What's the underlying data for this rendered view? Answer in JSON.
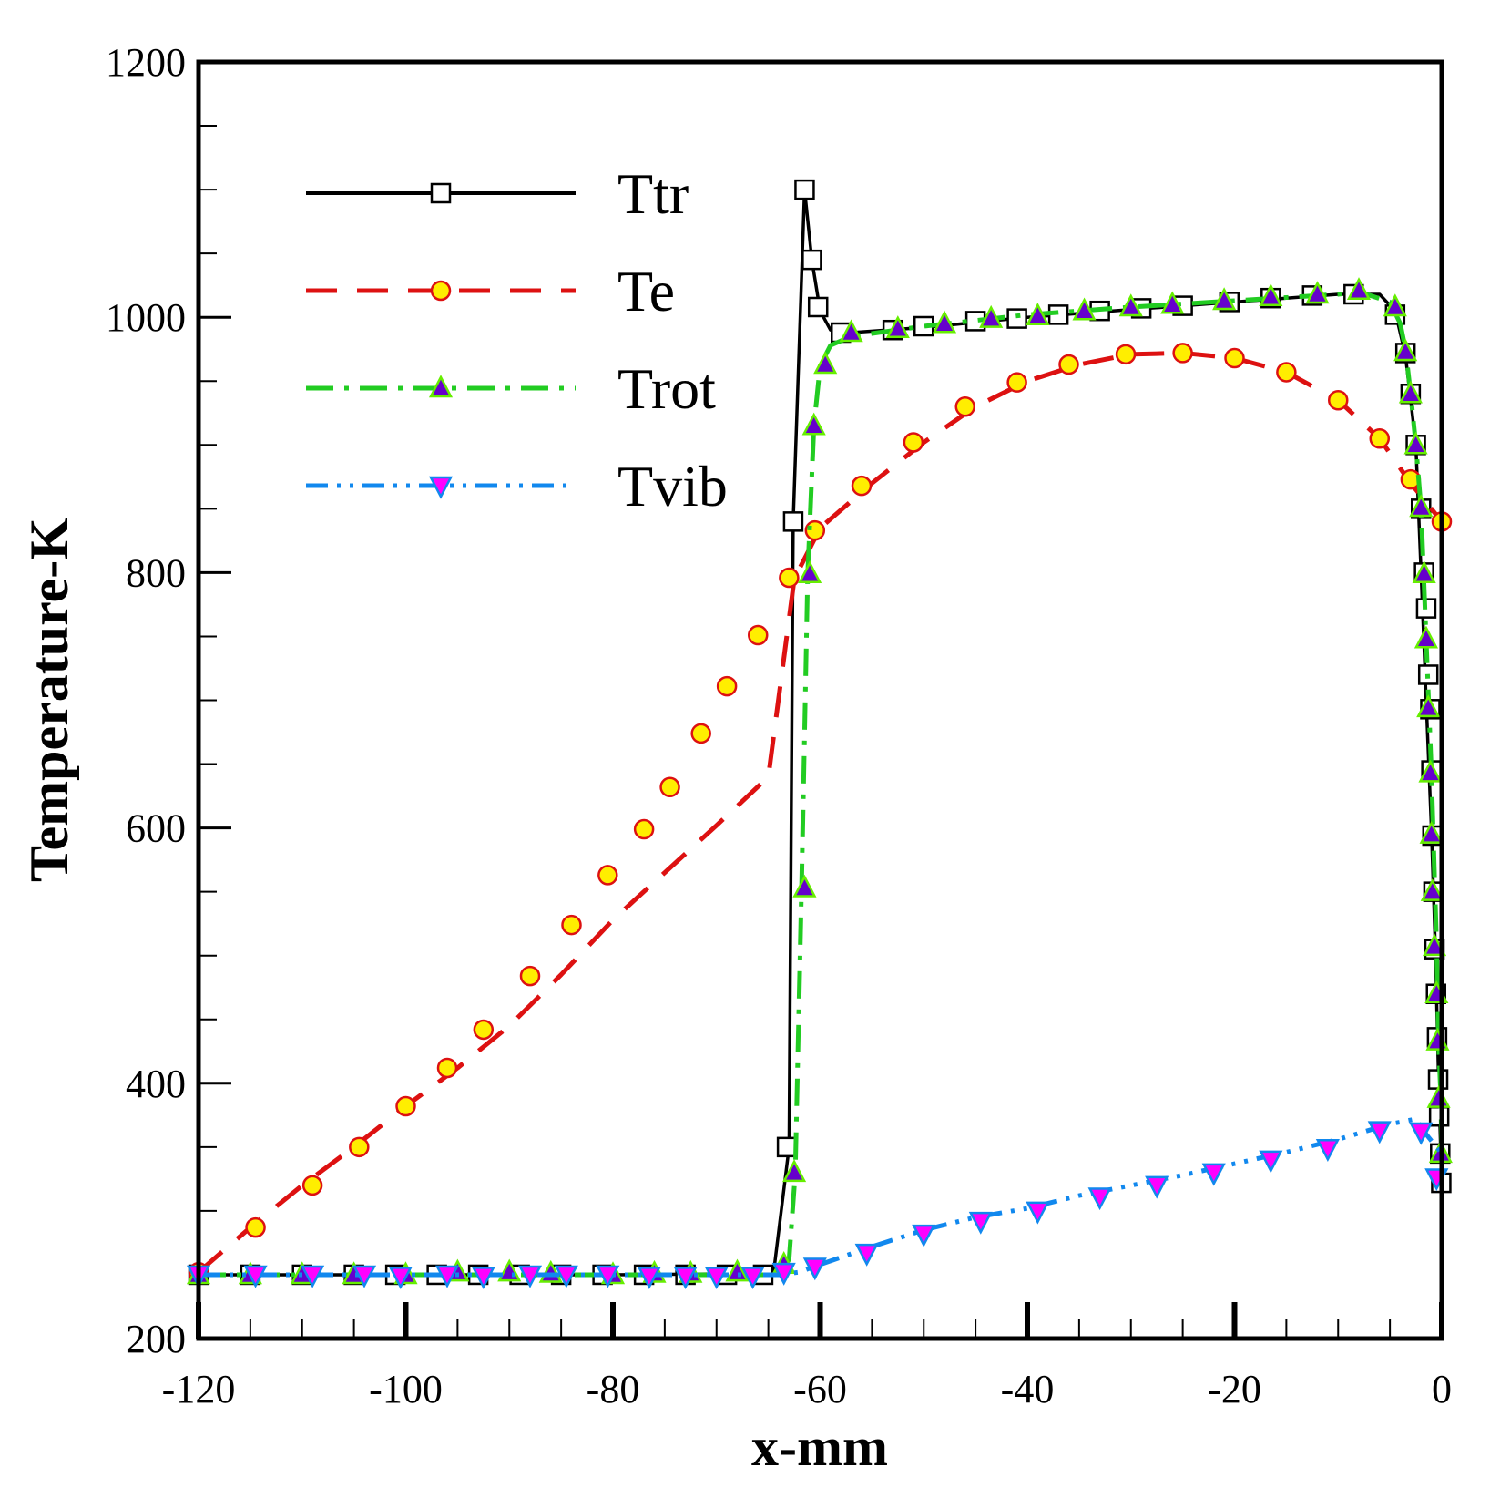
{
  "chart_data": {
    "type": "line",
    "xlabel": "x-mm",
    "ylabel": "Temperature-K",
    "xlim": [
      -120,
      0
    ],
    "ylim": [
      200,
      1200
    ],
    "xticks": [
      -120,
      -100,
      -80,
      -60,
      -40,
      -20,
      0
    ],
    "yticks": [
      200,
      400,
      600,
      800,
      1000,
      1200
    ],
    "xtick_labels": [
      "-120",
      "-100",
      "-80",
      "-60",
      "-40",
      "-20",
      "0"
    ],
    "ytick_labels": [
      "200",
      "400",
      "600",
      "800",
      "1000",
      "1200"
    ],
    "legend_position": "top-left",
    "series": [
      {
        "name": "Ttr",
        "color": "#000000",
        "dash": "solid",
        "marker": "square",
        "marker_fill": "#ffffff",
        "marker_stroke": "#000000",
        "line": [
          [
            -120,
            250
          ],
          [
            -100,
            250
          ],
          [
            -80,
            250
          ],
          [
            -64.5,
            251
          ],
          [
            -63,
            350
          ],
          [
            -62.6,
            840
          ],
          [
            -61.5,
            1100
          ],
          [
            -60.8,
            1045
          ],
          [
            -60,
            1005
          ],
          [
            -59,
            990
          ],
          [
            -57,
            988
          ],
          [
            -50,
            992
          ],
          [
            -40,
            1000
          ],
          [
            -30,
            1006
          ],
          [
            -20,
            1012
          ],
          [
            -10,
            1018
          ],
          [
            -6,
            1018
          ],
          [
            -4.5,
            1005
          ],
          [
            -3.5,
            970
          ],
          [
            -2.5,
            900
          ],
          [
            -2,
            800
          ],
          [
            -1.5,
            700
          ],
          [
            -1,
            600
          ],
          [
            -0.6,
            500
          ],
          [
            -0.3,
            400
          ],
          [
            0,
            320
          ]
        ],
        "markers": [
          [
            -120,
            250
          ],
          [
            -115,
            250
          ],
          [
            -110,
            250
          ],
          [
            -105,
            250
          ],
          [
            -101,
            250
          ],
          [
            -97,
            250
          ],
          [
            -93,
            250
          ],
          [
            -89,
            250
          ],
          [
            -85,
            250
          ],
          [
            -81,
            250
          ],
          [
            -77,
            250
          ],
          [
            -73,
            250
          ],
          [
            -69,
            250
          ],
          [
            -65.5,
            250
          ],
          [
            -63.2,
            350
          ],
          [
            -62.6,
            840
          ],
          [
            -61.5,
            1100
          ],
          [
            -60.8,
            1045
          ],
          [
            -60.2,
            1008
          ],
          [
            -58,
            988
          ],
          [
            -53,
            990
          ],
          [
            -50,
            993
          ],
          [
            -45,
            997
          ],
          [
            -41,
            999
          ],
          [
            -37,
            1002
          ],
          [
            -33,
            1005
          ],
          [
            -29,
            1007
          ],
          [
            -25,
            1009
          ],
          [
            -20.5,
            1012
          ],
          [
            -16.5,
            1015
          ],
          [
            -12.5,
            1017
          ],
          [
            -8.5,
            1018
          ],
          [
            -4.5,
            1002
          ],
          [
            -3.5,
            972
          ],
          [
            -3,
            940
          ],
          [
            -2.5,
            900
          ],
          [
            -2,
            850
          ],
          [
            -1.7,
            800
          ],
          [
            -1.5,
            772
          ],
          [
            -1.3,
            720
          ],
          [
            -1.1,
            693
          ],
          [
            -1,
            645
          ],
          [
            -0.9,
            594
          ],
          [
            -0.8,
            550
          ],
          [
            -0.7,
            505
          ],
          [
            -0.55,
            470
          ],
          [
            -0.45,
            436
          ],
          [
            -0.35,
            403
          ],
          [
            -0.25,
            374
          ],
          [
            -0.15,
            345
          ],
          [
            -0.05,
            322
          ]
        ]
      },
      {
        "name": "Te",
        "color": "#dd1111",
        "dash": "long-dash",
        "marker": "circle",
        "marker_fill": "#ffee00",
        "marker_stroke": "#dd1111",
        "line": [
          [
            -120,
            252
          ],
          [
            -115,
            287
          ],
          [
            -110,
            320
          ],
          [
            -105,
            350
          ],
          [
            -100,
            382
          ],
          [
            -95,
            412
          ],
          [
            -90,
            445
          ],
          [
            -85,
            485
          ],
          [
            -80,
            528
          ],
          [
            -75,
            565
          ],
          [
            -70,
            602
          ],
          [
            -65,
            640
          ],
          [
            -62.5,
            795
          ],
          [
            -60,
            835
          ],
          [
            -55,
            870
          ],
          [
            -50,
            902
          ],
          [
            -45,
            930
          ],
          [
            -40,
            950
          ],
          [
            -35,
            963
          ],
          [
            -30,
            971
          ],
          [
            -25,
            972
          ],
          [
            -20,
            968
          ],
          [
            -15,
            957
          ],
          [
            -10,
            935
          ],
          [
            -6,
            905
          ],
          [
            -3,
            870
          ],
          [
            0,
            840
          ]
        ],
        "markers": [
          [
            -120,
            252
          ],
          [
            -114.5,
            287
          ],
          [
            -109,
            320
          ],
          [
            -104.5,
            350
          ],
          [
            -100,
            382
          ],
          [
            -96,
            412
          ],
          [
            -92.5,
            442
          ],
          [
            -88,
            484
          ],
          [
            -84,
            524
          ],
          [
            -80.5,
            563
          ],
          [
            -77,
            599
          ],
          [
            -74.5,
            632
          ],
          [
            -71.5,
            674
          ],
          [
            -69,
            711
          ],
          [
            -66,
            751
          ],
          [
            -63,
            796
          ],
          [
            -60.5,
            833
          ],
          [
            -56,
            868
          ],
          [
            -51,
            902
          ],
          [
            -46,
            930
          ],
          [
            -41,
            949
          ],
          [
            -36,
            963
          ],
          [
            -30.5,
            971
          ],
          [
            -25,
            972
          ],
          [
            -20,
            968
          ],
          [
            -15,
            957
          ],
          [
            -10,
            935
          ],
          [
            -6,
            905
          ],
          [
            -3,
            873
          ],
          [
            0,
            840
          ]
        ]
      },
      {
        "name": "Trot",
        "color": "#22cc22",
        "dash": "dash-dot",
        "marker": "triangle-up",
        "marker_fill": "#6600cc",
        "marker_stroke": "#66ee00",
        "line": [
          [
            -120,
            250
          ],
          [
            -100,
            250
          ],
          [
            -80,
            250
          ],
          [
            -64,
            250
          ],
          [
            -63,
            262
          ],
          [
            -62.4,
            330
          ],
          [
            -61.8,
            550
          ],
          [
            -61.2,
            800
          ],
          [
            -60.6,
            915
          ],
          [
            -60,
            962
          ],
          [
            -59,
            978
          ],
          [
            -57,
            985
          ],
          [
            -50,
            993
          ],
          [
            -40,
            1002
          ],
          [
            -30,
            1008
          ],
          [
            -20,
            1013
          ],
          [
            -10,
            1018
          ],
          [
            -8,
            1020
          ],
          [
            -5,
            1012
          ],
          [
            -4,
            995
          ],
          [
            -3.5,
            975
          ],
          [
            -3,
            940
          ],
          [
            -2.5,
            900
          ],
          [
            -2,
            850
          ],
          [
            -1.5,
            748
          ],
          [
            -1,
            645
          ],
          [
            -0.5,
            510
          ],
          [
            -0.3,
            430
          ],
          [
            -0.1,
            390
          ],
          [
            0,
            345
          ]
        ],
        "markers": [
          [
            -120,
            250
          ],
          [
            -115,
            250
          ],
          [
            -110,
            250
          ],
          [
            -105,
            250
          ],
          [
            -100,
            250
          ],
          [
            -95,
            252
          ],
          [
            -90,
            252
          ],
          [
            -86,
            251
          ],
          [
            -80,
            250
          ],
          [
            -76,
            251
          ],
          [
            -72.5,
            251
          ],
          [
            -68,
            252
          ],
          [
            -63.5,
            258
          ],
          [
            -62.5,
            330
          ],
          [
            -61.5,
            553
          ],
          [
            -61,
            799
          ],
          [
            -60.6,
            915
          ],
          [
            -59.5,
            963
          ],
          [
            -57,
            988
          ],
          [
            -52.5,
            991
          ],
          [
            -48,
            995
          ],
          [
            -43.5,
            999
          ],
          [
            -39,
            1001
          ],
          [
            -34.5,
            1005
          ],
          [
            -30,
            1008
          ],
          [
            -26,
            1010
          ],
          [
            -21,
            1013
          ],
          [
            -16.5,
            1016
          ],
          [
            -12,
            1018
          ],
          [
            -8,
            1021
          ],
          [
            -4.5,
            1008
          ],
          [
            -3.5,
            973
          ],
          [
            -3,
            940
          ],
          [
            -2.5,
            900
          ],
          [
            -2,
            851
          ],
          [
            -1.7,
            799
          ],
          [
            -1.5,
            748
          ],
          [
            -1.3,
            694
          ],
          [
            -1.1,
            643
          ],
          [
            -1,
            595
          ],
          [
            -0.9,
            550
          ],
          [
            -0.7,
            507
          ],
          [
            -0.5,
            470
          ],
          [
            -0.4,
            433
          ],
          [
            -0.3,
            388
          ],
          [
            -0.1,
            345
          ]
        ]
      },
      {
        "name": "Tvib",
        "color": "#1188ee",
        "dash": "dash-dot-dot",
        "marker": "triangle-down",
        "marker_fill": "#ff00ff",
        "marker_stroke": "#1188ee",
        "line": [
          [
            -120,
            250
          ],
          [
            -100,
            250
          ],
          [
            -80,
            250
          ],
          [
            -64,
            250
          ],
          [
            -62,
            252
          ],
          [
            -60,
            258
          ],
          [
            -55,
            272
          ],
          [
            -50,
            285
          ],
          [
            -45,
            295
          ],
          [
            -40,
            302
          ],
          [
            -35,
            312
          ],
          [
            -30,
            320
          ],
          [
            -25,
            328
          ],
          [
            -20,
            337
          ],
          [
            -15,
            346
          ],
          [
            -10,
            356
          ],
          [
            -5,
            368
          ],
          [
            -2.5,
            372
          ],
          [
            -1.5,
            360
          ],
          [
            0,
            345
          ]
        ],
        "markers": [
          [
            -120,
            250
          ],
          [
            -114.5,
            250
          ],
          [
            -109,
            250
          ],
          [
            -104,
            250
          ],
          [
            -100.5,
            249
          ],
          [
            -96,
            250
          ],
          [
            -92.5,
            249
          ],
          [
            -88,
            250
          ],
          [
            -84.5,
            250
          ],
          [
            -80.5,
            250
          ],
          [
            -76.5,
            249
          ],
          [
            -73,
            249
          ],
          [
            -70,
            249
          ],
          [
            -66.5,
            249
          ],
          [
            -63.5,
            252
          ],
          [
            -60.5,
            256
          ],
          [
            -55.5,
            267
          ],
          [
            -50,
            282
          ],
          [
            -44.5,
            292
          ],
          [
            -39,
            300
          ],
          [
            -33,
            311
          ],
          [
            -27.5,
            320
          ],
          [
            -22,
            330
          ],
          [
            -16.5,
            340
          ],
          [
            -11,
            349
          ],
          [
            -6,
            363
          ],
          [
            -2,
            362
          ],
          [
            -0.5,
            326
          ]
        ]
      }
    ]
  }
}
